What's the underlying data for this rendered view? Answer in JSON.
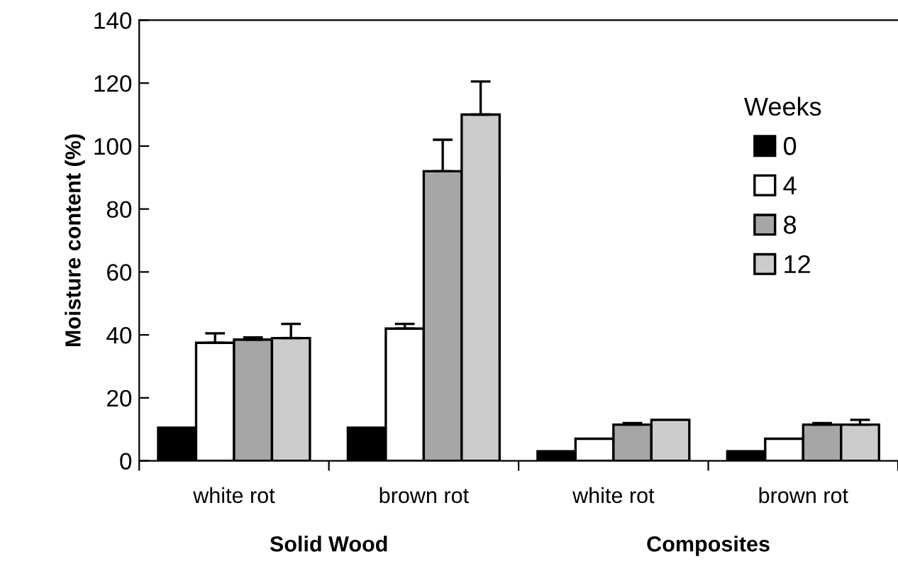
{
  "chart_data": {
    "type": "bar",
    "ylabel": "Moisture content (%)",
    "legend_title": "Weeks",
    "categories": [
      "white rot",
      "brown rot",
      "white rot",
      "brown rot"
    ],
    "series": [
      {
        "name": "0",
        "color": "#000000",
        "values": [
          10.5,
          10.5,
          3,
          3
        ],
        "errors": [
          null,
          null,
          null,
          null
        ]
      },
      {
        "name": "4",
        "color": "#ffffff",
        "values": [
          37.5,
          42,
          7,
          7
        ],
        "errors": [
          3,
          1.5,
          null,
          null
        ]
      },
      {
        "name": "8",
        "color": "#a6a6a6",
        "values": [
          38.5,
          92,
          11.5,
          11.5
        ],
        "errors": [
          0.7,
          10,
          0.5,
          0.5
        ]
      },
      {
        "name": "12",
        "color": "#cccccc",
        "values": [
          39,
          110,
          13,
          11.5
        ],
        "errors": [
          4.5,
          10.5,
          null,
          1.5
        ]
      }
    ],
    "annotations": [
      "Solid Wood",
      "Composites"
    ],
    "ylim": [
      0,
      140
    ],
    "yticks": [
      0,
      20,
      40,
      60,
      80,
      100,
      120,
      140
    ],
    "legend": "right",
    "grid": false
  }
}
